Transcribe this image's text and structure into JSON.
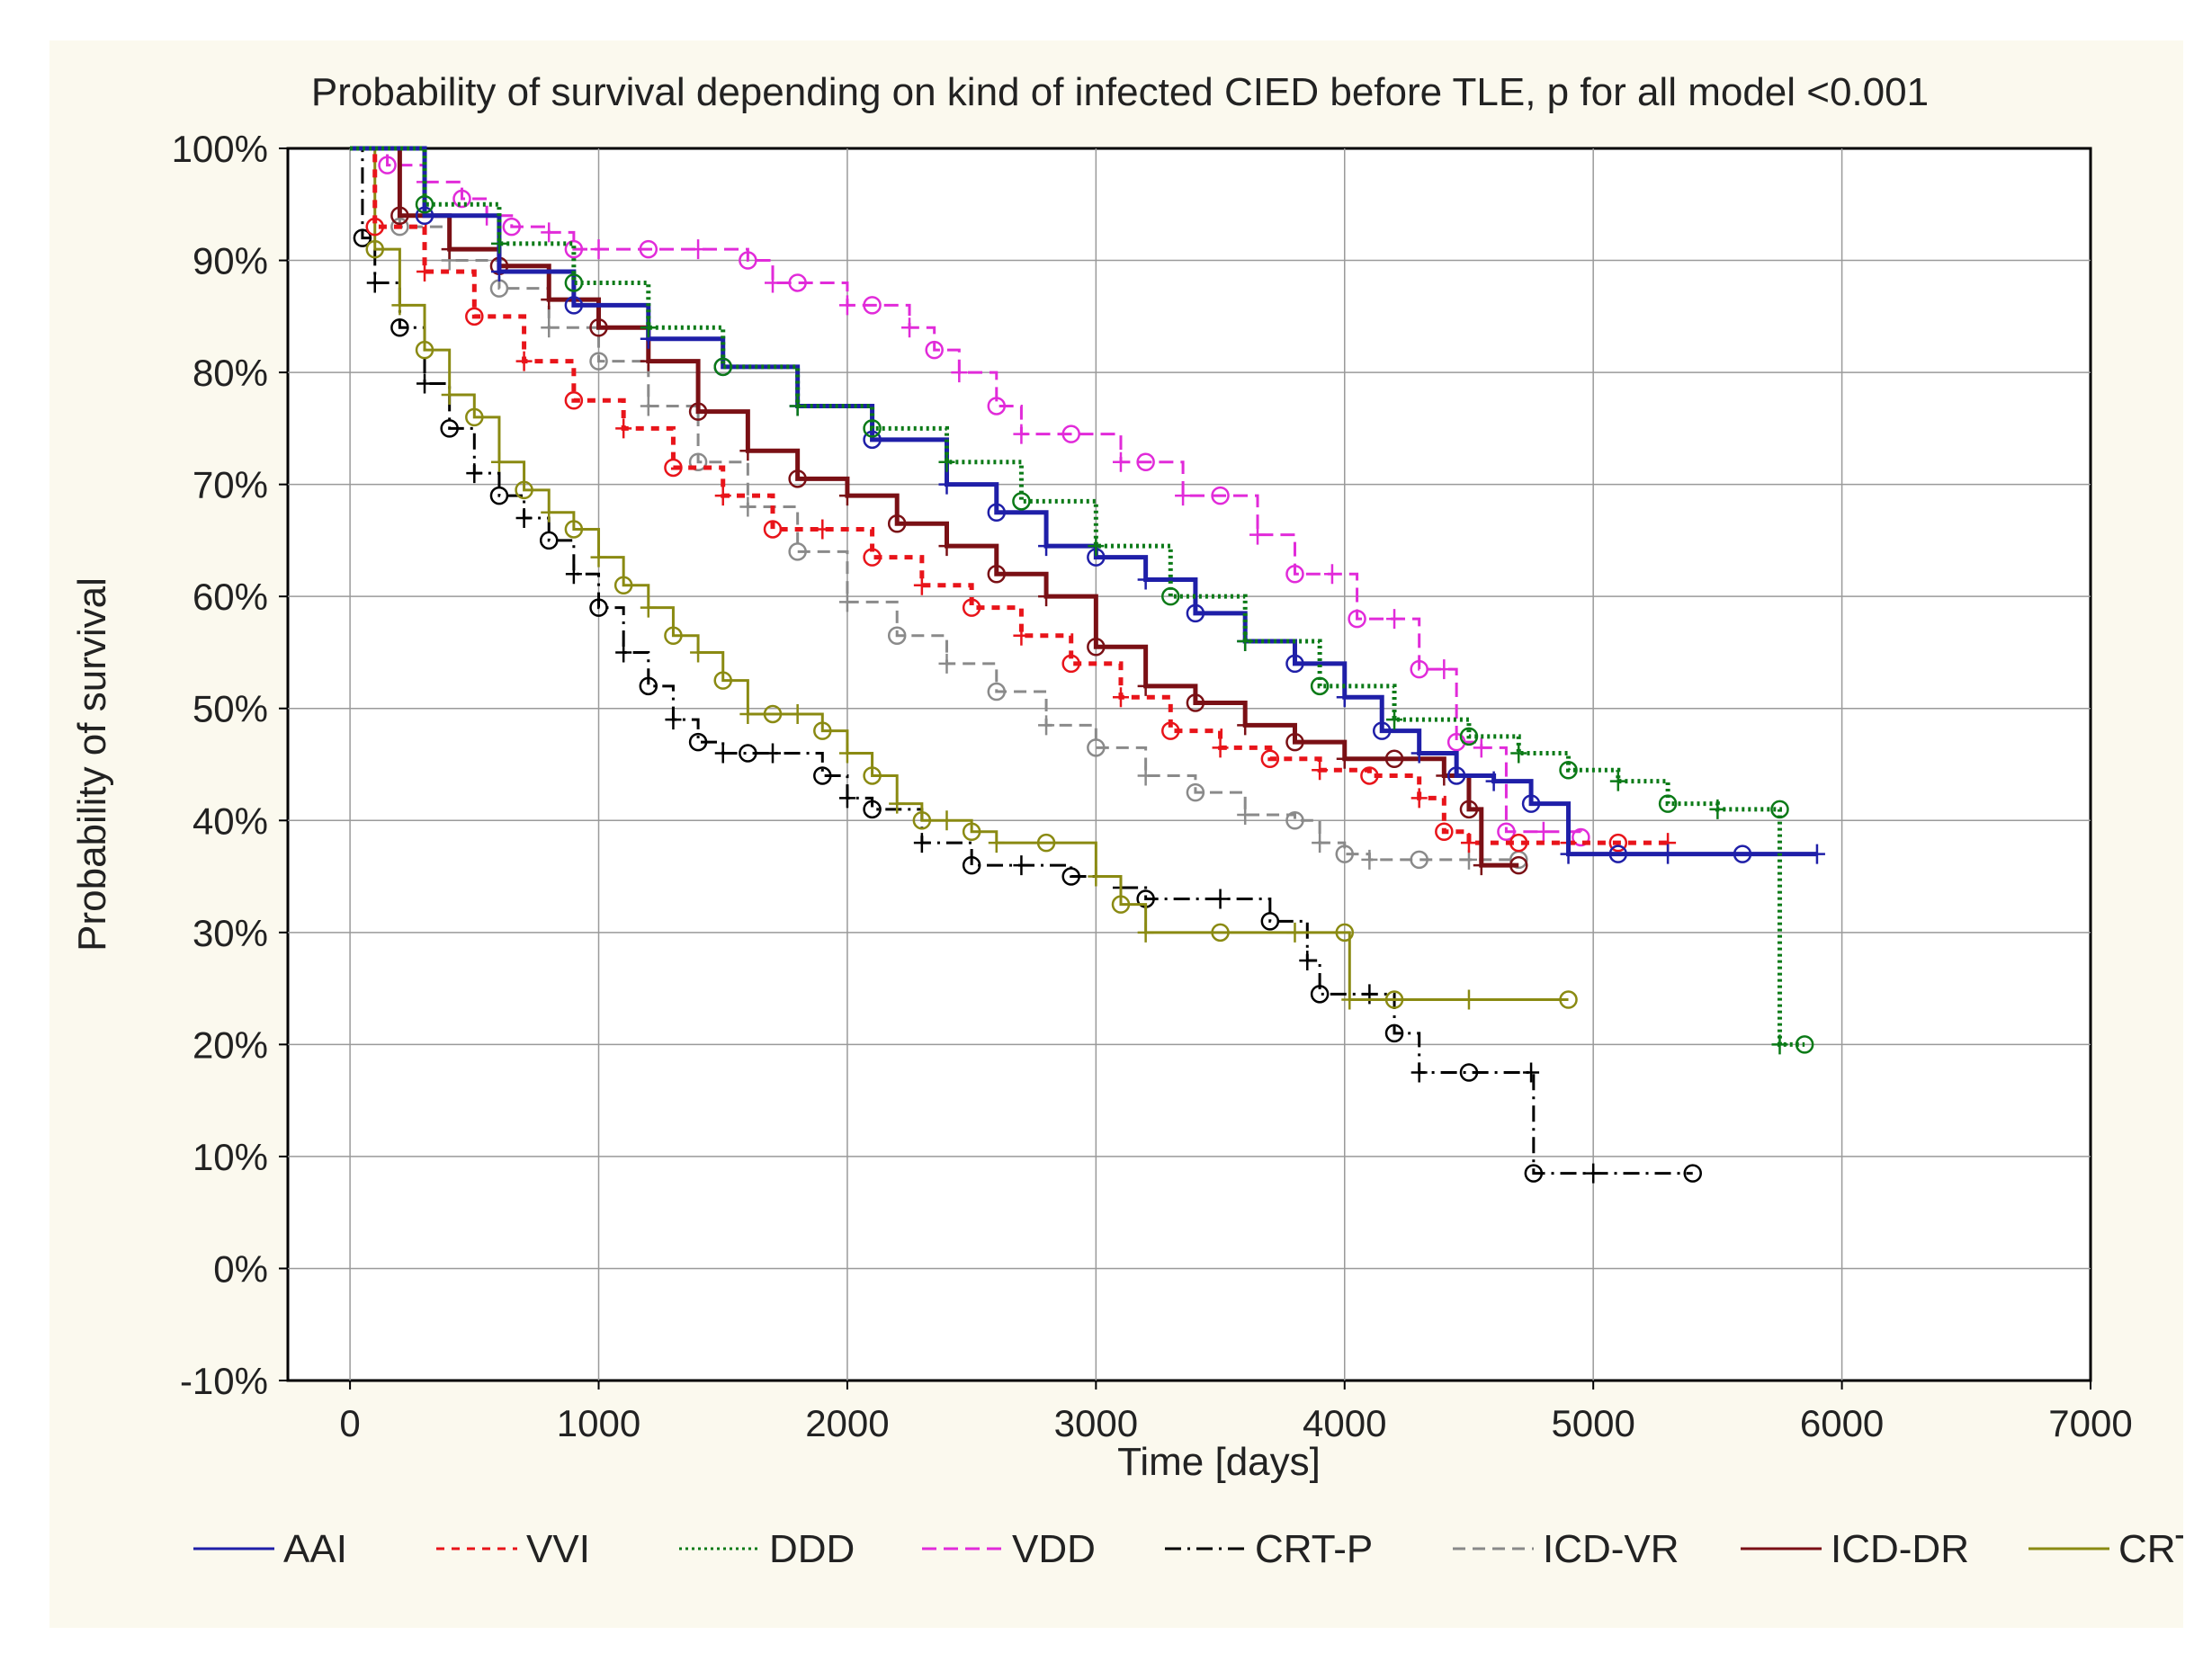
{
  "chart_data": {
    "type": "line",
    "title": "Probability of survival depending on kind of infected CIED before TLE, p for all model <0.001",
    "xlabel": "Time [days]",
    "ylabel": "Probability of survival",
    "xlim": [
      -250,
      7000
    ],
    "ylim": [
      -10,
      100
    ],
    "x_ticks": [
      0,
      1000,
      2000,
      3000,
      4000,
      5000,
      6000,
      7000
    ],
    "y_ticks": [
      -10,
      0,
      10,
      20,
      30,
      40,
      50,
      60,
      70,
      80,
      90,
      100
    ],
    "x_tick_labels": [
      "0",
      "1000",
      "2000",
      "3000",
      "4000",
      "5000",
      "6000",
      "7000"
    ],
    "y_tick_labels": [
      "-10%",
      "0%",
      "10%",
      "20%",
      "30%",
      "40%",
      "50%",
      "60%",
      "70%",
      "80%",
      "90%",
      "100%"
    ],
    "grid": true,
    "legend_position": "bottom",
    "series": [
      {
        "name": "AAI",
        "color": "#1f1fa8",
        "dash": "",
        "x": [
          0,
          300,
          600,
          900,
          1200,
          1500,
          1800,
          2100,
          2400,
          2600,
          2800,
          3000,
          3200,
          3400,
          3600,
          3800,
          4000,
          4150,
          4300,
          4450,
          4600,
          4750,
          4900,
          5100,
          5300,
          5600,
          5900
        ],
        "y": [
          100,
          94,
          89,
          86,
          83,
          80.5,
          77,
          74,
          70,
          67.5,
          64.5,
          63.5,
          61.5,
          58.5,
          56,
          54,
          51,
          48,
          46,
          44,
          43.5,
          41.5,
          37,
          37,
          37,
          37,
          37
        ]
      },
      {
        "name": "VVI",
        "color": "#e8141a",
        "dash": "9,8",
        "x": [
          0,
          100,
          300,
          500,
          700,
          900,
          1100,
          1300,
          1500,
          1700,
          1900,
          2100,
          2300,
          2500,
          2700,
          2900,
          3100,
          3300,
          3500,
          3700,
          3900,
          4100,
          4300,
          4400,
          4500,
          4700,
          4900,
          5100,
          5300
        ],
        "y": [
          100,
          93,
          89,
          85,
          81,
          77.5,
          75,
          71.5,
          69,
          66,
          66,
          63.5,
          61,
          59,
          56.5,
          54,
          51,
          48,
          46.5,
          45.5,
          44.5,
          44,
          42,
          39,
          38,
          38,
          38,
          38,
          38
        ]
      },
      {
        "name": "DDD",
        "color": "#0b7a17",
        "dash": "3,4",
        "x": [
          0,
          300,
          600,
          900,
          1200,
          1500,
          1800,
          2100,
          2400,
          2700,
          3000,
          3300,
          3600,
          3900,
          4200,
          4500,
          4700,
          4900,
          5100,
          5300,
          5500,
          5750,
          5750,
          5850
        ],
        "y": [
          100,
          95,
          91.5,
          88,
          84,
          80.5,
          77,
          75,
          72,
          68.5,
          64.5,
          60,
          56,
          52,
          49,
          47.5,
          46,
          44.5,
          43.5,
          41.5,
          41,
          41,
          20,
          20
        ]
      },
      {
        "name": "VDD",
        "color": "#e12bd9",
        "dash": "16,8",
        "x": [
          0,
          150,
          300,
          450,
          550,
          650,
          800,
          900,
          1000,
          1200,
          1400,
          1600,
          1700,
          1800,
          2000,
          2100,
          2250,
          2350,
          2450,
          2600,
          2700,
          2900,
          3100,
          3200,
          3350,
          3500,
          3650,
          3800,
          3950,
          4050,
          4200,
          4300,
          4400,
          4450,
          4550,
          4650,
          4800,
          4950
        ],
        "y": [
          100,
          98.5,
          97,
          95.5,
          94,
          93,
          92.5,
          91,
          91,
          91,
          91,
          90,
          88,
          88,
          86,
          86,
          84,
          82,
          80,
          77,
          74.5,
          74.5,
          72,
          72,
          69,
          69,
          65.5,
          62,
          62,
          58,
          58,
          53.5,
          53.5,
          47,
          46.5,
          39,
          39,
          38.5
        ]
      },
      {
        "name": "CRT-P",
        "color": "#000000",
        "dash": "18,7,3,7",
        "x": [
          0,
          50,
          100,
          200,
          300,
          400,
          500,
          600,
          700,
          800,
          900,
          1000,
          1100,
          1200,
          1300,
          1400,
          1500,
          1600,
          1700,
          1900,
          2000,
          2100,
          2300,
          2500,
          2700,
          2900,
          3100,
          3200,
          3500,
          3700,
          3850,
          3900,
          4100,
          4200,
          4300,
          4500,
          4750,
          4760,
          5000,
          5400
        ],
        "y": [
          100,
          92,
          88,
          84,
          79,
          75,
          71,
          69,
          67,
          65,
          62,
          59,
          55,
          52,
          49,
          47,
          46,
          46,
          46,
          44,
          42,
          41,
          38,
          36,
          36,
          35,
          34,
          33,
          33,
          31,
          27.5,
          24.5,
          24.5,
          21,
          17.5,
          17.5,
          17.5,
          8.5,
          8.5,
          8.5
        ]
      },
      {
        "name": "ICD-VR",
        "color": "#8a8a8a",
        "dash": "14,8",
        "x": [
          0,
          200,
          400,
          600,
          800,
          1000,
          1200,
          1400,
          1600,
          1800,
          2000,
          2200,
          2400,
          2600,
          2800,
          3000,
          3200,
          3400,
          3600,
          3800,
          3900,
          4000,
          4100,
          4300,
          4500,
          4700
        ],
        "y": [
          100,
          93,
          90,
          87.5,
          84,
          81,
          77,
          72,
          68,
          64,
          59.5,
          56.5,
          54,
          51.5,
          48.5,
          46.5,
          44,
          42.5,
          40.5,
          40,
          38,
          37,
          36.5,
          36.5,
          36.5,
          36.5
        ]
      },
      {
        "name": "ICD-DR",
        "color": "#7a1015",
        "dash": "",
        "x": [
          0,
          200,
          400,
          600,
          800,
          1000,
          1200,
          1400,
          1600,
          1800,
          2000,
          2200,
          2400,
          2600,
          2800,
          3000,
          3200,
          3400,
          3600,
          3800,
          4000,
          4200,
          4400,
          4500,
          4550,
          4700
        ],
        "y": [
          100,
          94,
          91,
          89.5,
          86.5,
          84,
          81,
          76.5,
          73,
          70.5,
          69,
          66.5,
          64.5,
          62,
          60,
          55.5,
          52,
          50.5,
          48.5,
          47,
          45.5,
          45.5,
          44,
          41,
          36,
          36
        ]
      },
      {
        "name": "CRTD",
        "color": "#8a8a12",
        "dash": "",
        "x": [
          0,
          100,
          200,
          300,
          400,
          500,
          600,
          700,
          800,
          900,
          1000,
          1100,
          1200,
          1300,
          1400,
          1500,
          1600,
          1700,
          1800,
          1900,
          2000,
          2100,
          2200,
          2300,
          2400,
          2500,
          2600,
          2800,
          3000,
          3100,
          3200,
          3500,
          3800,
          4000,
          4020,
          4200,
          4500,
          4900
        ],
        "y": [
          100,
          91,
          86,
          82,
          78,
          76,
          72,
          69.5,
          67.5,
          66,
          63.5,
          61,
          59,
          56.5,
          55,
          52.5,
          49.5,
          49.5,
          49.5,
          48,
          46,
          44,
          41.5,
          40,
          40,
          39,
          38,
          38,
          35,
          32.5,
          30,
          30,
          30,
          30,
          24,
          24,
          24,
          24
        ]
      }
    ]
  }
}
